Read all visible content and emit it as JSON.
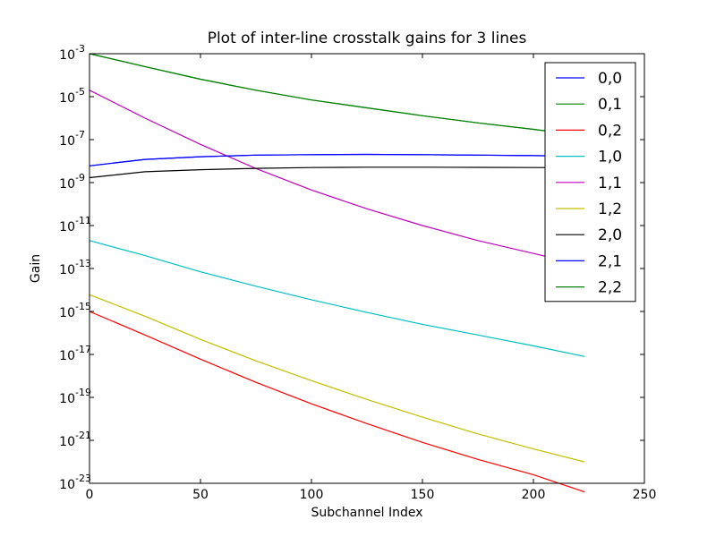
{
  "chart_data": {
    "type": "line",
    "title": "Plot of inter-line crosstalk gains for 3 lines",
    "xlabel": "Subchannel Index",
    "ylabel": "Gain",
    "xlim": [
      0,
      250
    ],
    "ylim": [
      1e-23,
      0.001
    ],
    "yscale": "log",
    "grid": false,
    "legend_position": "top-right",
    "x_ticks": [
      "0",
      "50",
      "100",
      "150",
      "200",
      "250"
    ],
    "y_ticks": [
      {
        "base": "10",
        "exp": "-3"
      },
      {
        "base": "10",
        "exp": "-5"
      },
      {
        "base": "10",
        "exp": "-7"
      },
      {
        "base": "10",
        "exp": "-9"
      },
      {
        "base": "10",
        "exp": "-11"
      },
      {
        "base": "10",
        "exp": "-13"
      },
      {
        "base": "10",
        "exp": "-15"
      },
      {
        "base": "10",
        "exp": "-17"
      },
      {
        "base": "10",
        "exp": "-19"
      },
      {
        "base": "10",
        "exp": "-21"
      },
      {
        "base": "10",
        "exp": "-23"
      }
    ],
    "x": [
      0,
      25,
      50,
      75,
      100,
      125,
      150,
      175,
      200,
      223
    ],
    "series": [
      {
        "name": "0,0",
        "color": "#0000ff",
        "values": [
          6e-09,
          1.2e-08,
          1.6e-08,
          1.9e-08,
          2e-08,
          2.05e-08,
          2e-08,
          1.9e-08,
          1.8e-08,
          1.7e-08
        ]
      },
      {
        "name": "0,1",
        "color": "#008000",
        "values": [
          0.001,
          0.00025,
          6.5e-05,
          2e-05,
          7e-06,
          3e-06,
          1.3e-06,
          6e-07,
          3e-07,
          1.5e-07
        ]
      },
      {
        "name": "0,2",
        "color": "#ff0000",
        "values": [
          1e-15,
          8e-17,
          6e-18,
          5e-19,
          5e-20,
          6e-21,
          8e-22,
          1.3e-22,
          2.5e-23,
          4e-24
        ]
      },
      {
        "name": "1,0",
        "color": "#00bfbf",
        "values": [
          2e-12,
          4e-13,
          7e-14,
          1.5e-14,
          3.5e-15,
          9e-16,
          2.5e-16,
          8e-17,
          2.5e-17,
          8e-18
        ]
      },
      {
        "name": "1,1",
        "color": "#bf00bf",
        "values": [
          2e-05,
          1e-06,
          6e-08,
          4.5e-09,
          4.5e-10,
          6e-11,
          1e-11,
          2e-12,
          5e-13,
          1.4e-13
        ]
      },
      {
        "name": "1,2",
        "color": "#bfbf00",
        "values": [
          6e-15,
          6e-16,
          5e-17,
          5e-18,
          6e-19,
          8e-20,
          1.2e-20,
          2e-21,
          4e-22,
          1e-22
        ]
      },
      {
        "name": "2,0",
        "color": "#000000",
        "values": [
          1.7e-09,
          3.2e-09,
          4e-09,
          4.6e-09,
          5e-09,
          5.2e-09,
          5.2e-09,
          5.1e-09,
          5e-09,
          4.9e-09
        ]
      },
      {
        "name": "2,1",
        "color": "#0000ff",
        "values": [
          6e-09,
          1.2e-08,
          1.6e-08,
          1.9e-08,
          2e-08,
          2.05e-08,
          2e-08,
          1.9e-08,
          1.8e-08,
          1.7e-08
        ]
      },
      {
        "name": "2,2",
        "color": "#008000",
        "values": [
          0.001,
          0.00025,
          6.5e-05,
          2e-05,
          7e-06,
          3e-06,
          1.3e-06,
          6e-07,
          3e-07,
          1.5e-07
        ]
      }
    ]
  }
}
